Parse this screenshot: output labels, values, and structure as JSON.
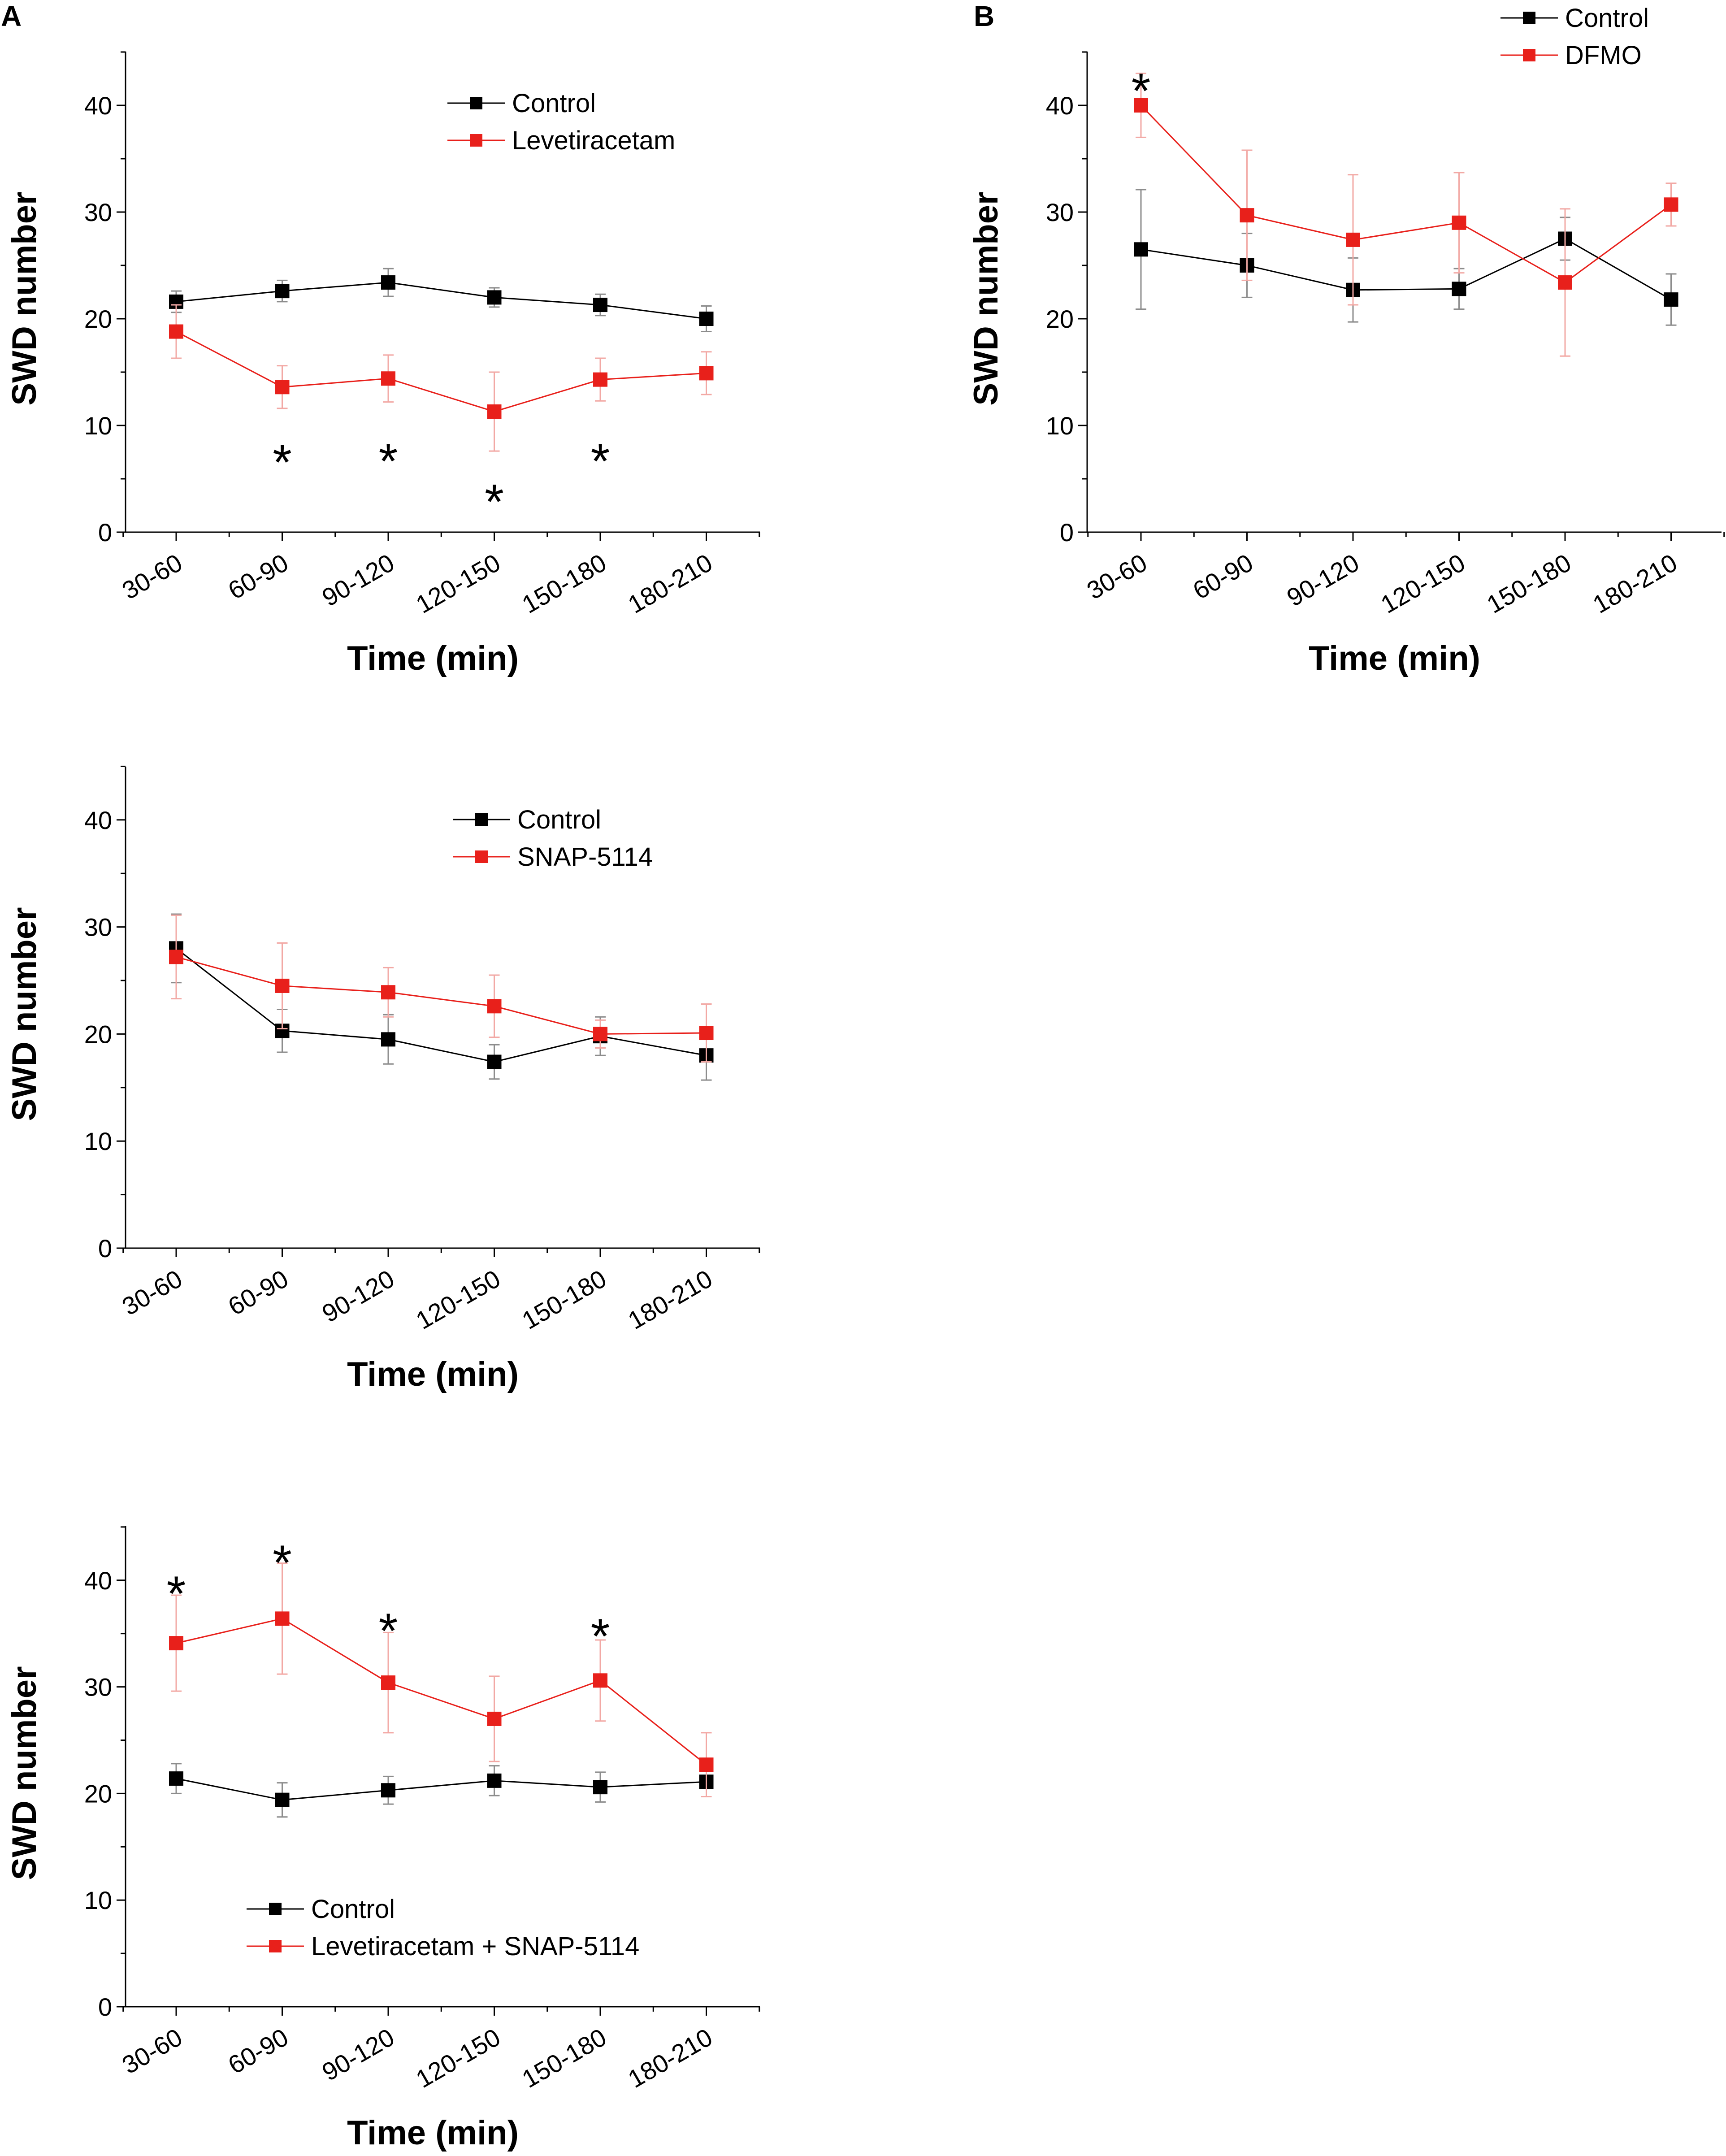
{
  "figure": {
    "colors": {
      "control": "#000000",
      "treatment": "#e8201b",
      "treatment_err": "#f2a8a4",
      "control_err": "#8c8c8c",
      "axis": "#000000"
    },
    "panel_letters": [
      "A",
      "B"
    ]
  },
  "chart_data": [
    {
      "id": "levetiracetam",
      "type": "line",
      "xlabel": "Time (min)",
      "ylabel": "SWD number",
      "categories": [
        "30-60",
        "60-90",
        "90-120",
        "120-150",
        "150-180",
        "180-210"
      ],
      "ylim": [
        0,
        45
      ],
      "yticks": [
        0,
        10,
        20,
        30,
        40
      ],
      "legend_position": "top-right",
      "series": [
        {
          "name": "Control",
          "color": "#000000",
          "values": [
            21.6,
            22.6,
            23.4,
            22.0,
            21.3,
            20.0
          ],
          "errors": [
            1.0,
            1.0,
            1.3,
            0.9,
            1.0,
            1.2
          ]
        },
        {
          "name": "Levetiracetam",
          "color": "#e8201b",
          "values": [
            18.8,
            13.6,
            14.4,
            11.3,
            14.3,
            14.9
          ],
          "errors": [
            2.5,
            2.0,
            2.2,
            3.7,
            2.0,
            2.0
          ]
        }
      ],
      "significance": [
        {
          "category": "60-90",
          "label": "*",
          "y": 7.4
        },
        {
          "category": "90-120",
          "label": "*",
          "y": 7.5
        },
        {
          "category": "120-150",
          "label": "*",
          "y": 3.7
        },
        {
          "category": "150-180",
          "label": "*",
          "y": 7.5
        }
      ]
    },
    {
      "id": "dfmo",
      "type": "line",
      "xlabel": "Time (min)",
      "ylabel": "SWD number",
      "categories": [
        "30-60",
        "60-90",
        "90-120",
        "120-150",
        "150-180",
        "180-210"
      ],
      "ylim": [
        0,
        45
      ],
      "yticks": [
        0,
        10,
        20,
        30,
        40
      ],
      "legend_position": "top-right",
      "series": [
        {
          "name": "Control",
          "color": "#000000",
          "values": [
            26.5,
            25.0,
            22.7,
            22.8,
            27.5,
            21.8
          ],
          "errors": [
            5.6,
            3.0,
            3.0,
            1.9,
            2.0,
            2.4
          ]
        },
        {
          "name": "DFMO",
          "color": "#e8201b",
          "values": [
            40.0,
            29.7,
            27.4,
            29.0,
            23.4,
            30.7
          ],
          "errors": [
            3.0,
            6.1,
            6.1,
            4.7,
            6.9,
            2.0
          ]
        }
      ],
      "significance": [
        {
          "category": "30-60",
          "label": "*",
          "y": 42.2
        }
      ]
    },
    {
      "id": "snap5114",
      "type": "line",
      "xlabel": "Time (min)",
      "ylabel": "SWD number",
      "categories": [
        "30-60",
        "60-90",
        "90-120",
        "120-150",
        "150-180",
        "180-210"
      ],
      "ylim": [
        0,
        45
      ],
      "yticks": [
        0,
        10,
        20,
        30,
        40
      ],
      "legend_position": "top-right",
      "series": [
        {
          "name": "Control",
          "color": "#000000",
          "values": [
            28.0,
            20.3,
            19.5,
            17.4,
            19.8,
            18.0
          ],
          "errors": [
            3.2,
            2.0,
            2.3,
            1.6,
            1.8,
            2.3
          ]
        },
        {
          "name": "SNAP-5114",
          "color": "#e8201b",
          "values": [
            27.2,
            24.5,
            23.9,
            22.6,
            20.0,
            20.1
          ],
          "errors": [
            3.9,
            4.0,
            2.3,
            2.9,
            1.3,
            2.7
          ]
        }
      ],
      "significance": []
    },
    {
      "id": "combination",
      "type": "line",
      "xlabel": "Time (min)",
      "ylabel": "SWD number",
      "categories": [
        "30-60",
        "60-90",
        "90-120",
        "120-150",
        "150-180",
        "180-210"
      ],
      "ylim": [
        0,
        45
      ],
      "yticks": [
        0,
        10,
        20,
        30,
        40
      ],
      "legend_position": "bottom-left",
      "series": [
        {
          "name": "Control",
          "color": "#000000",
          "values": [
            21.4,
            19.4,
            20.3,
            21.2,
            20.6,
            21.1
          ],
          "errors": [
            1.4,
            1.6,
            1.3,
            1.4,
            1.4,
            1.4
          ]
        },
        {
          "name": "Levetiracetam + SNAP-5114",
          "color": "#e8201b",
          "values": [
            34.1,
            36.4,
            30.4,
            27.0,
            30.6,
            22.7
          ],
          "errors": [
            4.5,
            5.2,
            4.7,
            4.0,
            3.8,
            3.0
          ]
        }
      ],
      "significance": [
        {
          "category": "30-60",
          "label": "*",
          "y": 39.6
        },
        {
          "category": "60-90",
          "label": "*",
          "y": 42.5
        },
        {
          "category": "90-120",
          "label": "*",
          "y": 36.1
        },
        {
          "category": "150-180",
          "label": "*",
          "y": 35.6
        }
      ]
    }
  ]
}
